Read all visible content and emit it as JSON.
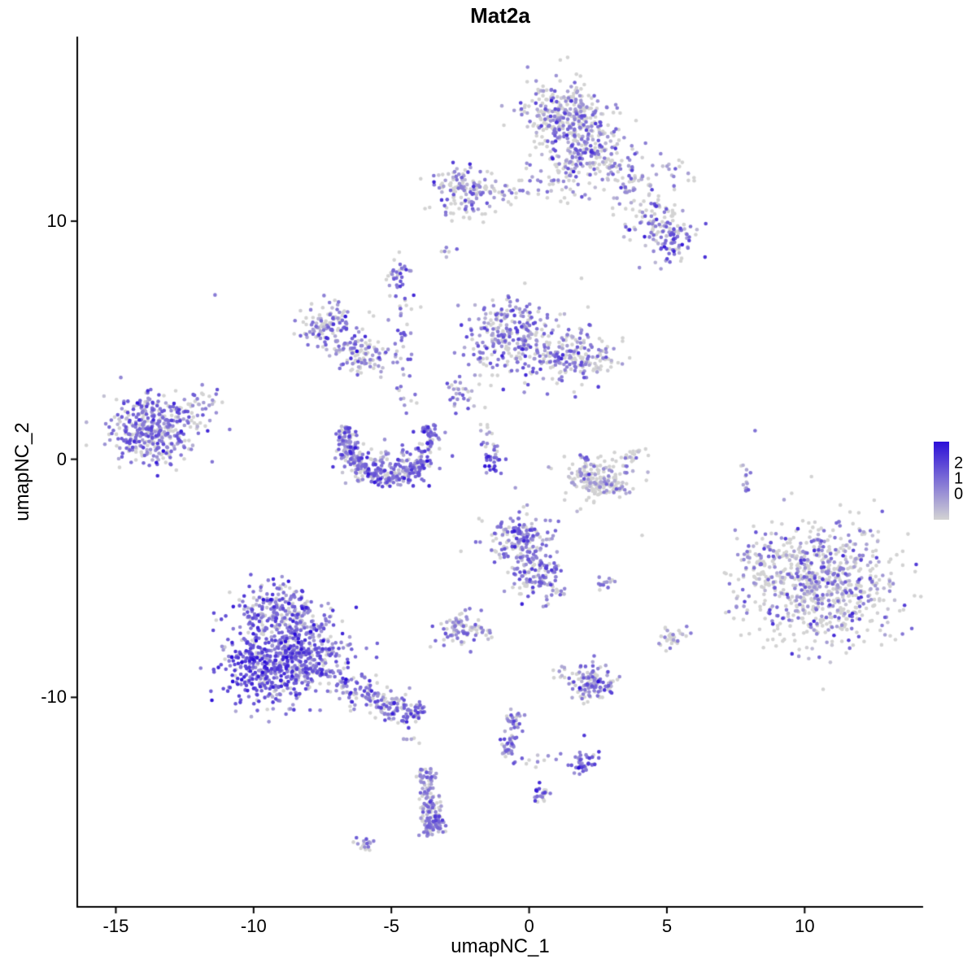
{
  "chart_data": {
    "type": "scatter",
    "title": "Mat2a",
    "xlabel": "umapNC_1",
    "ylabel": "umapNC_2",
    "xlim": [
      -16.4,
      14.3
    ],
    "ylim": [
      -18.8,
      17.75
    ],
    "x_ticks": [
      -15,
      -10,
      -5,
      0,
      5,
      10
    ],
    "y_ticks": [
      10,
      0,
      -10
    ],
    "grid": false,
    "legend_position": "right",
    "point_radius": 2.3,
    "vmax": 2.5,
    "colors": {
      "low": "#d3d3d3",
      "high": "#2B0ED8",
      "axis": "#000000",
      "background": "#ffffff"
    },
    "legend": {
      "ticks": [
        {
          "label": "2",
          "f": 0.28
        },
        {
          "label": "1",
          "f": 0.48
        },
        {
          "label": "0",
          "f": 0.68
        }
      ]
    },
    "clusters": [
      {
        "name": "top-left-lobe",
        "type": "blob",
        "cx": 1.2,
        "cy": 14.6,
        "sx": 0.75,
        "sy": 0.7,
        "n": 280,
        "expr": {
          "zero": 0.45,
          "mean": 0.95,
          "sd": 0.5
        }
      },
      {
        "name": "top-right-lobe",
        "type": "blob",
        "cx": 2.2,
        "cy": 13.1,
        "sx": 0.85,
        "sy": 0.75,
        "n": 220,
        "expr": {
          "zero": 0.45,
          "mean": 0.95,
          "sd": 0.5
        }
      },
      {
        "name": "top-below-sparse",
        "type": "blob",
        "cx": 1.3,
        "cy": 11.9,
        "sx": 0.5,
        "sy": 0.45,
        "n": 40,
        "expr": {
          "zero": 0.5,
          "mean": 0.9,
          "sd": 0.45
        }
      },
      {
        "name": "top-arm-strand",
        "type": "strand",
        "x1": 2.9,
        "y1": 12.3,
        "x2": 4.7,
        "y2": 10.1,
        "jitter": 0.45,
        "n": 90,
        "expr": {
          "zero": 0.5,
          "mean": 0.85,
          "sd": 0.5
        }
      },
      {
        "name": "arm-end-blob",
        "type": "blob",
        "cx": 4.95,
        "cy": 9.6,
        "sx": 0.55,
        "sy": 0.5,
        "n": 110,
        "expr": {
          "zero": 0.3,
          "mean": 1.15,
          "sd": 0.5
        }
      },
      {
        "name": "arm-upper-sparse",
        "type": "blob",
        "cx": 4.7,
        "cy": 11.9,
        "sx": 0.5,
        "sy": 0.4,
        "n": 14,
        "expr": {
          "zero": 0.5,
          "mean": 0.8,
          "sd": 0.4
        }
      },
      {
        "name": "arm-upper-sparse2",
        "type": "blob",
        "cx": 5.7,
        "cy": 12.0,
        "sx": 0.3,
        "sy": 0.3,
        "n": 8,
        "expr": {
          "zero": 0.5,
          "mean": 0.8,
          "sd": 0.4
        }
      },
      {
        "name": "arm-below-sparse",
        "type": "blob",
        "cx": 5.3,
        "cy": 8.6,
        "sx": 0.3,
        "sy": 0.25,
        "n": 10,
        "expr": {
          "zero": 0.4,
          "mean": 0.9,
          "sd": 0.4
        }
      },
      {
        "name": "upper-mid-cluster",
        "type": "blob",
        "cx": -2.4,
        "cy": 11.3,
        "sx": 0.6,
        "sy": 0.55,
        "n": 130,
        "expr": {
          "zero": 0.4,
          "mean": 0.95,
          "sd": 0.5
        }
      },
      {
        "name": "upper-mid-tail",
        "type": "strand",
        "x1": -1.6,
        "y1": 11.3,
        "x2": -0.2,
        "y2": 11.3,
        "jitter": 0.3,
        "n": 30,
        "expr": {
          "zero": 0.45,
          "mean": 0.9,
          "sd": 0.45
        }
      },
      {
        "name": "upper-mid-right-sparse",
        "type": "strand",
        "x1": 0.1,
        "y1": 11.4,
        "x2": 0.9,
        "y2": 11.5,
        "jitter": 0.25,
        "n": 10,
        "expr": {
          "zero": 0.5,
          "mean": 0.8,
          "sd": 0.4
        }
      },
      {
        "name": "upper-mid-below-pair",
        "type": "blob",
        "cx": -2.9,
        "cy": 8.7,
        "sx": 0.15,
        "sy": 0.18,
        "n": 6,
        "expr": {
          "zero": 0.3,
          "mean": 1.0,
          "sd": 0.4
        }
      },
      {
        "name": "center-cluster-main",
        "type": "blob",
        "cx": -0.6,
        "cy": 5.1,
        "sx": 0.8,
        "sy": 0.75,
        "n": 280,
        "expr": {
          "zero": 0.35,
          "mean": 1.05,
          "sd": 0.5
        }
      },
      {
        "name": "center-cluster-right",
        "type": "blob",
        "cx": 1.7,
        "cy": 4.3,
        "sx": 0.75,
        "sy": 0.55,
        "n": 180,
        "expr": {
          "zero": 0.4,
          "mean": 1.0,
          "sd": 0.5
        }
      },
      {
        "name": "center-left-spur",
        "type": "blob",
        "cx": -2.5,
        "cy": 2.8,
        "sx": 0.3,
        "sy": 0.4,
        "n": 30,
        "expr": {
          "zero": 0.4,
          "mean": 0.9,
          "sd": 0.45
        }
      },
      {
        "name": "center-down-strand",
        "type": "strand",
        "x1": -1.7,
        "y1": 2.1,
        "x2": -1.3,
        "y2": 0.2,
        "jitter": 0.2,
        "n": 18,
        "expr": {
          "zero": 0.4,
          "mean": 0.9,
          "sd": 0.45
        }
      },
      {
        "name": "center-dark-knot",
        "type": "blob",
        "cx": -1.3,
        "cy": -0.15,
        "sx": 0.22,
        "sy": 0.28,
        "n": 25,
        "expr": {
          "zero": 0.1,
          "mean": 1.6,
          "sd": 0.5
        }
      },
      {
        "name": "left-mid-cluster-a",
        "type": "blob",
        "cx": -7.3,
        "cy": 5.6,
        "sx": 0.5,
        "sy": 0.5,
        "n": 120,
        "expr": {
          "zero": 0.35,
          "mean": 1.0,
          "sd": 0.5
        }
      },
      {
        "name": "left-mid-cluster-b",
        "type": "blob",
        "cx": -6.3,
        "cy": 4.6,
        "sx": 0.5,
        "sy": 0.42,
        "n": 80,
        "expr": {
          "zero": 0.35,
          "mean": 1.0,
          "sd": 0.5
        }
      },
      {
        "name": "left-mid-bridge",
        "type": "strand",
        "x1": -5.9,
        "y1": 4.4,
        "x2": -5.0,
        "y2": 4.1,
        "jitter": 0.3,
        "n": 25,
        "expr": {
          "zero": 0.4,
          "mean": 0.9,
          "sd": 0.45
        }
      },
      {
        "name": "vertical-strand",
        "type": "strand",
        "x1": -4.7,
        "y1": 7.7,
        "x2": -4.5,
        "y2": 1.9,
        "jitter": 0.25,
        "n": 55,
        "expr": {
          "zero": 0.35,
          "mean": 1.0,
          "sd": 0.5
        }
      },
      {
        "name": "vertical-strand-top",
        "type": "blob",
        "cx": -4.7,
        "cy": 7.8,
        "sx": 0.3,
        "sy": 0.3,
        "n": 20,
        "expr": {
          "zero": 0.35,
          "mean": 1.0,
          "sd": 0.5
        }
      },
      {
        "name": "crescent",
        "type": "arc",
        "cx": -5.1,
        "cy": 0.9,
        "rx": 1.5,
        "ry": 1.7,
        "a0": 165,
        "a1": 377,
        "jitter": 0.13,
        "n": 330,
        "expr": {
          "zero": 0.22,
          "mean": 1.25,
          "sd": 0.5
        }
      },
      {
        "name": "crescent-fill",
        "type": "blob",
        "cx": -5.2,
        "cy": -0.3,
        "sx": 0.8,
        "sy": 0.4,
        "n": 90,
        "expr": {
          "zero": 0.22,
          "mean": 1.25,
          "sd": 0.5
        }
      },
      {
        "name": "far-left-cluster",
        "type": "blob",
        "cx": -13.6,
        "cy": 1.2,
        "sx": 0.78,
        "sy": 0.68,
        "n": 380,
        "expr": {
          "zero": 0.28,
          "mean": 1.1,
          "sd": 0.5
        }
      },
      {
        "name": "far-left-tail",
        "type": "strand",
        "x1": -12.6,
        "y1": 1.9,
        "x2": -11.4,
        "y2": 2.5,
        "jitter": 0.3,
        "n": 40,
        "expr": {
          "zero": 0.3,
          "mean": 1.05,
          "sd": 0.5
        }
      },
      {
        "name": "right-of-center-cluster",
        "type": "blob",
        "cx": 2.6,
        "cy": -0.9,
        "sx": 0.6,
        "sy": 0.45,
        "n": 150,
        "expr": {
          "zero": 0.68,
          "mean": 0.5,
          "sd": 0.4
        }
      },
      {
        "name": "right-of-center-arc",
        "type": "arc",
        "cx": 2.9,
        "cy": -0.3,
        "rx": 1.0,
        "ry": 0.9,
        "a0": 150,
        "a1": 300,
        "jitter": 0.12,
        "n": 50,
        "expr": {
          "zero": 0.4,
          "mean": 0.9,
          "sd": 0.5
        }
      },
      {
        "name": "right-of-center-tip",
        "type": "strand",
        "x1": 3.4,
        "y1": -0.1,
        "x2": 4.05,
        "y2": 0.4,
        "jitter": 0.15,
        "n": 22,
        "expr": {
          "zero": 0.5,
          "mean": 0.8,
          "sd": 0.45
        }
      },
      {
        "name": "right-big-cluster",
        "type": "blob",
        "cx": 10.6,
        "cy": -5.2,
        "sx": 1.35,
        "sy": 1.25,
        "n": 760,
        "expr": {
          "zero": 0.52,
          "mean": 0.85,
          "sd": 0.6
        }
      },
      {
        "name": "right-big-left-spur",
        "type": "blob",
        "cx": 8.3,
        "cy": -4.6,
        "sx": 0.5,
        "sy": 0.6,
        "n": 60,
        "expr": {
          "zero": 0.5,
          "mean": 0.85,
          "sd": 0.55
        }
      },
      {
        "name": "right-edge-strand",
        "type": "strand",
        "x1": 7.9,
        "y1": -0.1,
        "x2": 7.85,
        "y2": -1.3,
        "jitter": 0.12,
        "n": 14,
        "expr": {
          "zero": 0.4,
          "mean": 0.9,
          "sd": 0.5
        }
      },
      {
        "name": "low-center-cluster-a",
        "type": "blob",
        "cx": -0.4,
        "cy": -3.3,
        "sx": 0.55,
        "sy": 0.5,
        "n": 160,
        "expr": {
          "zero": 0.3,
          "mean": 1.1,
          "sd": 0.5
        }
      },
      {
        "name": "low-center-cluster-b",
        "type": "blob",
        "cx": 0.2,
        "cy": -4.8,
        "sx": 0.45,
        "sy": 0.5,
        "n": 120,
        "expr": {
          "zero": 0.3,
          "mean": 1.1,
          "sd": 0.5
        }
      },
      {
        "name": "low-center-tail",
        "type": "strand",
        "x1": 0.6,
        "y1": -5.2,
        "x2": 1.2,
        "y2": -5.6,
        "jitter": 0.15,
        "n": 18,
        "expr": {
          "zero": 0.35,
          "mean": 1.0,
          "sd": 0.5
        }
      },
      {
        "name": "small-pair-cluster",
        "type": "blob",
        "cx": 2.8,
        "cy": -5.15,
        "sx": 0.2,
        "sy": 0.2,
        "n": 14,
        "expr": {
          "zero": 0.3,
          "mean": 1.0,
          "sd": 0.45
        }
      },
      {
        "name": "bottom-left-upper",
        "type": "blob",
        "cx": -9.0,
        "cy": -6.4,
        "sx": 0.8,
        "sy": 0.65,
        "n": 250,
        "expr": {
          "zero": 0.25,
          "mean": 1.2,
          "sd": 0.55
        }
      },
      {
        "name": "bottom-left-main",
        "type": "blob",
        "cx": -9.5,
        "cy": -8.7,
        "sx": 0.8,
        "sy": 0.8,
        "n": 450,
        "expr": {
          "zero": 0.15,
          "mean": 1.45,
          "sd": 0.55
        }
      },
      {
        "name": "bottom-left-right",
        "type": "blob",
        "cx": -7.8,
        "cy": -8.3,
        "sx": 0.75,
        "sy": 0.7,
        "n": 250,
        "expr": {
          "zero": 0.2,
          "mean": 1.3,
          "sd": 0.55
        }
      },
      {
        "name": "bottom-left-tail",
        "type": "strand",
        "x1": -7.0,
        "y1": -9.4,
        "x2": -4.4,
        "y2": -10.6,
        "jitter": 0.33,
        "n": 150,
        "expr": {
          "zero": 0.3,
          "mean": 1.1,
          "sd": 0.5
        }
      },
      {
        "name": "tail-end-knot",
        "type": "blob",
        "cx": -4.3,
        "cy": -10.6,
        "sx": 0.3,
        "sy": 0.28,
        "n": 40,
        "expr": {
          "zero": 0.2,
          "mean": 1.3,
          "sd": 0.5
        }
      },
      {
        "name": "below-tail-dot",
        "type": "blob",
        "cx": -4.3,
        "cy": -11.8,
        "sx": 0.15,
        "sy": 0.12,
        "n": 6,
        "expr": {
          "zero": 0.3,
          "mean": 1.0,
          "sd": 0.4
        }
      },
      {
        "name": "small-left-low-cluster",
        "type": "blob",
        "cx": -2.4,
        "cy": -7.1,
        "sx": 0.4,
        "sy": 0.35,
        "n": 80,
        "expr": {
          "zero": 0.45,
          "mean": 0.85,
          "sd": 0.45
        }
      },
      {
        "name": "small-left-low-sparse",
        "type": "strand",
        "x1": -1.9,
        "y1": -7.2,
        "x2": -1.2,
        "y2": -7.4,
        "jitter": 0.15,
        "n": 10,
        "expr": {
          "zero": 0.5,
          "mean": 0.7,
          "sd": 0.4
        }
      },
      {
        "name": "small-right-low-cluster",
        "type": "blob",
        "cx": 5.15,
        "cy": -7.5,
        "sx": 0.27,
        "sy": 0.25,
        "n": 30,
        "expr": {
          "zero": 0.5,
          "mean": 0.75,
          "sd": 0.45
        }
      },
      {
        "name": "bottom-mid-cluster",
        "type": "blob",
        "cx": 2.3,
        "cy": -9.4,
        "sx": 0.45,
        "sy": 0.35,
        "n": 120,
        "expr": {
          "zero": 0.3,
          "mean": 1.1,
          "sd": 0.5
        }
      },
      {
        "name": "bottom-mid-left-dots",
        "type": "blob",
        "cx": 1.2,
        "cy": -9.0,
        "sx": 0.18,
        "sy": 0.15,
        "n": 8,
        "expr": {
          "zero": 0.4,
          "mean": 0.9,
          "sd": 0.4
        }
      },
      {
        "name": "low-strand",
        "type": "strand",
        "x1": -0.5,
        "y1": -10.7,
        "x2": -0.8,
        "y2": -12.5,
        "jitter": 0.18,
        "n": 60,
        "expr": {
          "zero": 0.35,
          "mean": 1.0,
          "sd": 0.5
        }
      },
      {
        "name": "low-strand-knot",
        "type": "blob",
        "cx": 2.0,
        "cy": -12.7,
        "sx": 0.3,
        "sy": 0.28,
        "n": 40,
        "expr": {
          "zero": 0.2,
          "mean": 1.25,
          "sd": 0.5
        }
      },
      {
        "name": "low-diag-sparse",
        "type": "strand",
        "x1": -0.5,
        "y1": -12.6,
        "x2": 1.6,
        "y2": -12.7,
        "jitter": 0.2,
        "n": 12,
        "expr": {
          "zero": 0.4,
          "mean": 0.9,
          "sd": 0.45
        }
      },
      {
        "name": "bottom-strand",
        "type": "strand",
        "x1": -3.7,
        "y1": -13.0,
        "x2": -3.5,
        "y2": -15.7,
        "jitter": 0.2,
        "n": 110,
        "expr": {
          "zero": 0.3,
          "mean": 1.1,
          "sd": 0.5
        }
      },
      {
        "name": "bottom-strand-dense",
        "type": "blob",
        "cx": -3.55,
        "cy": -15.1,
        "sx": 0.24,
        "sy": 0.45,
        "n": 60,
        "expr": {
          "zero": 0.28,
          "mean": 1.15,
          "sd": 0.5
        }
      },
      {
        "name": "bottom-small-knot",
        "type": "blob",
        "cx": 0.45,
        "cy": -14.05,
        "sx": 0.18,
        "sy": 0.2,
        "n": 25,
        "expr": {
          "zero": 0.25,
          "mean": 1.2,
          "sd": 0.5
        }
      },
      {
        "name": "bottom-left-small",
        "type": "blob",
        "cx": -5.9,
        "cy": -16.15,
        "sx": 0.22,
        "sy": 0.15,
        "n": 18,
        "expr": {
          "zero": 0.5,
          "mean": 0.75,
          "sd": 0.4
        }
      },
      {
        "name": "isolated-dots",
        "type": "points",
        "pts": [
          [
            -11.4,
            6.9
          ],
          [
            8.2,
            1.2
          ],
          [
            4.1,
            -3.2
          ],
          [
            -0.5,
            -1.2
          ],
          [
            -0.2,
            -2.0
          ],
          [
            1.9,
            7.6
          ],
          [
            2.0,
            -11.6
          ]
        ],
        "expr": {
          "zero": 0.3,
          "mean": 1.0,
          "sd": 0.4
        }
      }
    ]
  }
}
